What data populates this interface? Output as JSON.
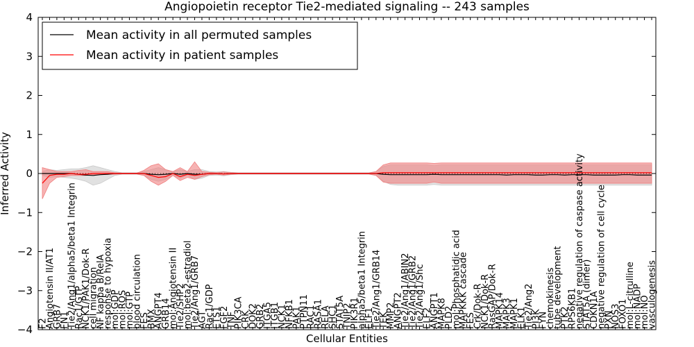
{
  "chart_data": {
    "type": "line",
    "title": "Angiopoietin receptor Tie2-mediated signaling -- 243 samples",
    "xlabel": "Cellular Entities",
    "ylabel": "Inferred Activity",
    "ylim": [
      -4,
      4
    ],
    "yticks": [
      "4",
      "3",
      "2",
      "1",
      "0",
      "−1",
      "−2",
      "−3",
      "−4"
    ],
    "ytick_values": [
      4,
      3,
      2,
      1,
      0,
      -1,
      -2,
      -3,
      -4
    ],
    "grid": false,
    "legend_position": "top-left",
    "colors": {
      "permuted": "#000000",
      "patient": "#ff0000",
      "patient_band": "#f08080",
      "permuted_band": "#c8c8c8"
    },
    "categories": [
      "F2",
      "Angiotensin II/AT1",
      "GRB7",
      "FN1",
      "Tie2/Ang1/alpha5/beta1 Integrin",
      "Rac1/GTP",
      "NCK1/PAK1/Dok-R",
      "cell migration",
      "NF kappa B/RelA",
      "response to hypoxia",
      "mol:GDP",
      "mol:ROS",
      "mol:GTP",
      "blood circulation",
      "FES",
      "BMX",
      "ANGPT4",
      "GRB14",
      "mol:Angiotensin II",
      "Tie2/SHP2",
      "mol:beta2-estradiol",
      "Tie2/Ang1/GRB7",
      "AGT",
      "Rac1/GDP",
      "ETS1",
      "FGF2",
      "TNF",
      "PIK3CA",
      "CRK",
      "DOK2",
      "GRB2",
      "ITGA5",
      "ITGB1",
      "NCK1",
      "NFKB1",
      "PAK1",
      "PTPN11",
      "RAC1",
      "RASA1",
      "RELA",
      "SHC1",
      "STAT5A",
      "TNIP2",
      "PIK3R1",
      "alpha5/beta1 Integrin",
      "ELF1",
      "Tie2/Ang1/GRB14",
      "TEK",
      "MMP2",
      "ANGPT2",
      "Tie2/Ang1/ABIN2",
      "Tie2/Ang1/GRB2",
      "Tie2/Ang1/Shc",
      "ELF2",
      "ANGPT1",
      "MAPK8",
      "PLD2",
      "mol:Phosphatidic acid",
      "MAPKKK cascade",
      "FES",
      "Crk/Dok-R",
      "NCK1/Dok-R",
      "RasGAP/Dok-R",
      "MAPK14",
      "MAPK3",
      "MAPK1",
      "ELK1",
      "Tie2/Ang2",
      "PI3K",
      "FYN",
      "chemokinesis",
      "tube development",
      "PTK2",
      "RPS6KB1",
      "negative regulation of caspase activity",
      "STAT5A (dimer)",
      "CDKN1A",
      "negative regulation of cell cycle",
      "PXN",
      "NOS3",
      "FOXO1",
      "mol:L-citrulline",
      "mol:NADP",
      "mol:NO",
      "vasculogenesis"
    ],
    "series": [
      {
        "name": "Mean activity in all permuted samples",
        "values": [
          0,
          0,
          0,
          0,
          0,
          -0.02,
          -0.04,
          -0.05,
          -0.03,
          -0.02,
          0,
          0,
          0,
          0,
          0,
          -0.02,
          -0.03,
          -0.02,
          0,
          -0.02,
          0,
          -0.02,
          -0.02,
          0,
          0,
          -0.01,
          0,
          0,
          0,
          0,
          0,
          0,
          0,
          0,
          0,
          0,
          0,
          0,
          0,
          0,
          0,
          0,
          0,
          0,
          0,
          0,
          0,
          -0.02,
          -0.03,
          -0.03,
          -0.03,
          -0.03,
          -0.03,
          -0.03,
          -0.02,
          -0.03,
          -0.03,
          -0.03,
          -0.03,
          -0.03,
          -0.03,
          -0.03,
          -0.03,
          -0.03,
          -0.04,
          -0.03,
          -0.03,
          -0.03,
          -0.04,
          -0.04,
          -0.03,
          -0.03,
          -0.04,
          -0.03,
          -0.03,
          -0.03,
          -0.04,
          -0.04,
          -0.04,
          -0.04,
          -0.03,
          -0.03,
          -0.04,
          -0.04,
          -0.04
        ],
        "lower": [
          -0.05,
          -0.1,
          -0.08,
          -0.1,
          -0.12,
          -0.15,
          -0.2,
          -0.3,
          -0.25,
          -0.15,
          -0.05,
          -0.02,
          -0.02,
          -0.02,
          -0.05,
          -0.15,
          -0.2,
          -0.15,
          -0.05,
          -0.12,
          -0.05,
          -0.15,
          -0.12,
          -0.05,
          -0.04,
          -0.06,
          -0.03,
          -0.02,
          -0.02,
          -0.02,
          -0.02,
          -0.02,
          -0.02,
          -0.02,
          -0.02,
          -0.02,
          -0.02,
          -0.02,
          -0.02,
          -0.02,
          -0.02,
          -0.02,
          -0.02,
          -0.02,
          -0.02,
          -0.02,
          -0.05,
          -0.2,
          -0.28,
          -0.3,
          -0.3,
          -0.3,
          -0.3,
          -0.3,
          -0.28,
          -0.3,
          -0.3,
          -0.3,
          -0.3,
          -0.3,
          -0.3,
          -0.3,
          -0.3,
          -0.3,
          -0.3,
          -0.3,
          -0.3,
          -0.3,
          -0.3,
          -0.3,
          -0.3,
          -0.3,
          -0.3,
          -0.3,
          -0.3,
          -0.3,
          -0.3,
          -0.3,
          -0.3,
          -0.3,
          -0.3,
          -0.3,
          -0.3,
          -0.3,
          -0.3
        ],
        "upper": [
          0.05,
          0.1,
          0.08,
          0.1,
          0.12,
          0.12,
          0.15,
          0.2,
          0.15,
          0.1,
          0.05,
          0.02,
          0.02,
          0.02,
          0.05,
          0.1,
          0.15,
          0.1,
          0.05,
          0.1,
          0.05,
          0.1,
          0.1,
          0.05,
          0.04,
          0.05,
          0.03,
          0.02,
          0.02,
          0.02,
          0.02,
          0.02,
          0.02,
          0.02,
          0.02,
          0.02,
          0.02,
          0.02,
          0.02,
          0.02,
          0.02,
          0.02,
          0.02,
          0.02,
          0.02,
          0.02,
          0.05,
          0.18,
          0.22,
          0.22,
          0.22,
          0.22,
          0.22,
          0.22,
          0.2,
          0.22,
          0.22,
          0.22,
          0.22,
          0.22,
          0.22,
          0.22,
          0.22,
          0.22,
          0.22,
          0.22,
          0.22,
          0.22,
          0.22,
          0.22,
          0.22,
          0.22,
          0.22,
          0.22,
          0.22,
          0.22,
          0.22,
          0.22,
          0.22,
          0.22,
          0.22,
          0.22,
          0.22,
          0.22,
          0.22
        ]
      },
      {
        "name": "Mean activity in patient samples",
        "values": [
          -0.25,
          -0.05,
          -0.02,
          -0.02,
          0,
          -0.02,
          -0.02,
          0,
          0,
          0,
          0,
          0,
          0,
          0,
          0,
          -0.05,
          -0.1,
          -0.08,
          0,
          -0.08,
          -0.02,
          -0.05,
          -0.02,
          0,
          0,
          -0.01,
          0,
          0,
          0,
          0,
          0,
          0,
          0,
          0,
          0,
          0,
          0,
          0,
          0,
          0,
          0,
          0,
          0,
          0,
          0,
          0,
          0,
          0.02,
          0.02,
          0.02,
          0.02,
          0.02,
          0.02,
          0.02,
          0.02,
          0.02,
          0.02,
          0.02,
          0.02,
          0.02,
          0.02,
          0.02,
          0.02,
          0.02,
          0.02,
          0.02,
          0.02,
          0.02,
          0.02,
          0.02,
          0.02,
          0.02,
          0.02,
          0.02,
          0.02,
          0.02,
          0.02,
          0.02,
          0.02,
          0.02,
          0.02,
          0.02,
          0.02,
          0.02,
          0.02
        ],
        "lower": [
          -0.65,
          -0.25,
          -0.1,
          -0.08,
          -0.05,
          -0.05,
          -0.05,
          -0.03,
          -0.02,
          -0.02,
          -0.02,
          -0.01,
          -0.01,
          -0.01,
          -0.05,
          -0.2,
          -0.3,
          -0.2,
          -0.05,
          -0.18,
          -0.1,
          -0.15,
          -0.08,
          -0.03,
          -0.02,
          -0.04,
          -0.02,
          -0.01,
          -0.01,
          -0.01,
          -0.01,
          -0.01,
          -0.01,
          -0.01,
          -0.01,
          -0.01,
          -0.01,
          -0.01,
          -0.01,
          -0.01,
          -0.01,
          -0.01,
          -0.01,
          -0.01,
          -0.01,
          -0.01,
          -0.05,
          -0.22,
          -0.25,
          -0.25,
          -0.25,
          -0.25,
          -0.25,
          -0.25,
          -0.22,
          -0.25,
          -0.25,
          -0.25,
          -0.25,
          -0.25,
          -0.25,
          -0.25,
          -0.25,
          -0.25,
          -0.25,
          -0.25,
          -0.25,
          -0.25,
          -0.25,
          -0.25,
          -0.25,
          -0.25,
          -0.25,
          -0.25,
          -0.25,
          -0.25,
          -0.25,
          -0.25,
          -0.25,
          -0.25,
          -0.25,
          -0.25,
          -0.25,
          -0.25,
          -0.25
        ],
        "upper": [
          0.15,
          0.1,
          0.05,
          0.05,
          0.05,
          0.08,
          0.1,
          0.05,
          0.05,
          0.05,
          0.02,
          0.01,
          0.01,
          0.01,
          0.08,
          0.2,
          0.25,
          0.1,
          0.05,
          0.15,
          0.05,
          0.3,
          0.05,
          0.03,
          0.02,
          0.04,
          0.02,
          0.01,
          0.01,
          0.01,
          0.01,
          0.01,
          0.01,
          0.01,
          0.01,
          0.01,
          0.01,
          0.01,
          0.01,
          0.01,
          0.01,
          0.01,
          0.01,
          0.01,
          0.01,
          0.01,
          0.05,
          0.22,
          0.27,
          0.27,
          0.27,
          0.27,
          0.27,
          0.27,
          0.26,
          0.27,
          0.27,
          0.27,
          0.27,
          0.27,
          0.27,
          0.27,
          0.27,
          0.27,
          0.27,
          0.27,
          0.27,
          0.27,
          0.27,
          0.27,
          0.27,
          0.27,
          0.27,
          0.27,
          0.27,
          0.27,
          0.27,
          0.27,
          0.27,
          0.27,
          0.27,
          0.27,
          0.27,
          0.27,
          0.27
        ]
      }
    ]
  }
}
